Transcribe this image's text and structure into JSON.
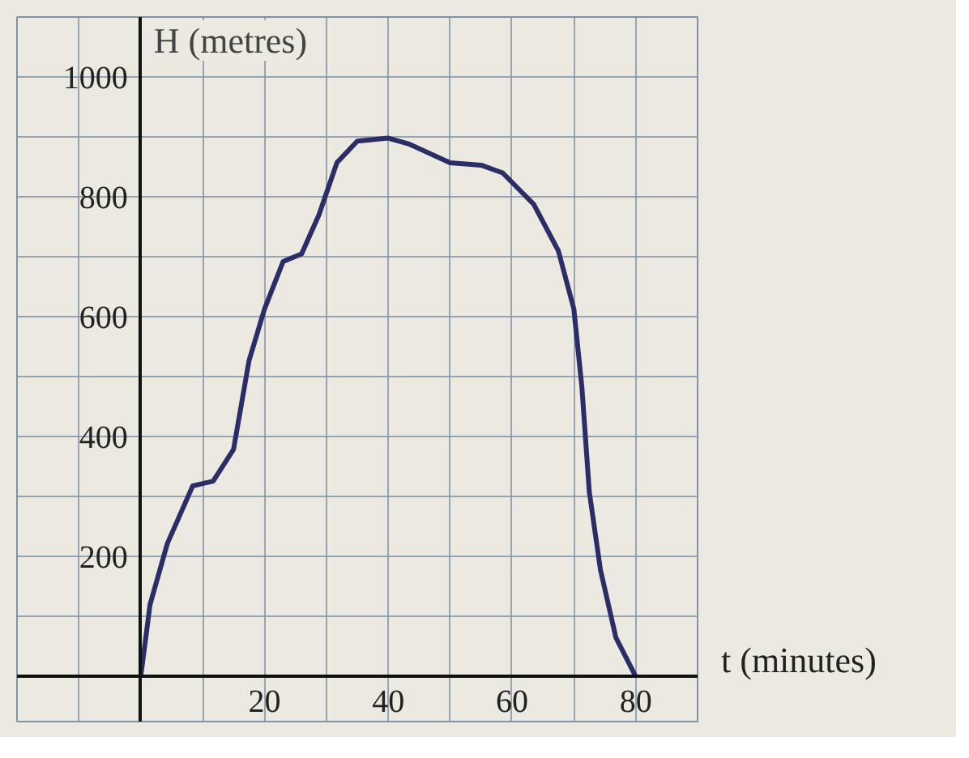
{
  "chart_data": {
    "type": "line",
    "xlabel": "t (minutes)",
    "ylabel": "H (metres)",
    "x": [
      0,
      1.5,
      4.3,
      8.4,
      11.7,
      15,
      17.5,
      20,
      23,
      26,
      28.8,
      31.7,
      35,
      40,
      43.4,
      50,
      55,
      58.5,
      63.5,
      67.5,
      70,
      71.3,
      72.5,
      74.3,
      76.8,
      80
    ],
    "series": [
      {
        "color": "#2b2d66",
        "values": [
          0,
          120,
          222,
          318,
          326,
          379,
          527,
          613,
          692,
          705,
          770,
          857,
          893,
          898,
          888,
          857,
          853,
          840,
          788,
          710,
          613,
          483,
          308,
          178,
          65,
          0
        ]
      }
    ],
    "xlim": [
      -20,
      90
    ],
    "ylim": [
      -75,
      1100
    ],
    "xticks": [
      {
        "value": -20,
        "label": null
      },
      {
        "value": -10,
        "label": null
      },
      {
        "value": 0,
        "label": null
      },
      {
        "value": 10,
        "label": null
      },
      20,
      {
        "value": 30,
        "label": null
      },
      40,
      {
        "value": 50,
        "label": null
      },
      60,
      {
        "value": 70,
        "label": null
      },
      80,
      {
        "value": 90,
        "label": null
      }
    ],
    "yticks": [
      {
        "value": 0,
        "label": null
      },
      {
        "value": 100,
        "label": null
      },
      200,
      {
        "value": 300,
        "label": null
      },
      400,
      {
        "value": 500,
        "label": null
      },
      600,
      {
        "value": 700,
        "label": null
      },
      800,
      {
        "value": 900,
        "label": null
      },
      1000,
      {
        "value": 1100,
        "label": null
      }
    ],
    "grid": true,
    "line_style": "solid"
  }
}
